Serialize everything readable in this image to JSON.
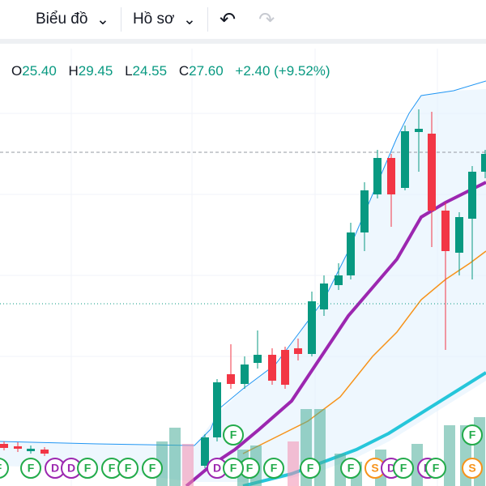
{
  "toolbar": {
    "chart_menu": "Biểu đồ",
    "profile_menu": "Hồ sơ"
  },
  "legend": {
    "open_label": "O",
    "open": "25.40",
    "high_label": "H",
    "high": "29.45",
    "low_label": "L",
    "low": "24.55",
    "close_label": "C",
    "close": "27.60",
    "change": "+2.40 (+9.52%)"
  },
  "markers": [
    "F",
    "F",
    "D",
    "D",
    "F",
    "F",
    "F",
    "F",
    "D",
    "F",
    "F",
    "F",
    "F",
    "F",
    "F",
    "S",
    "D",
    "F",
    "D",
    "F",
    "F",
    "S"
  ]
}
